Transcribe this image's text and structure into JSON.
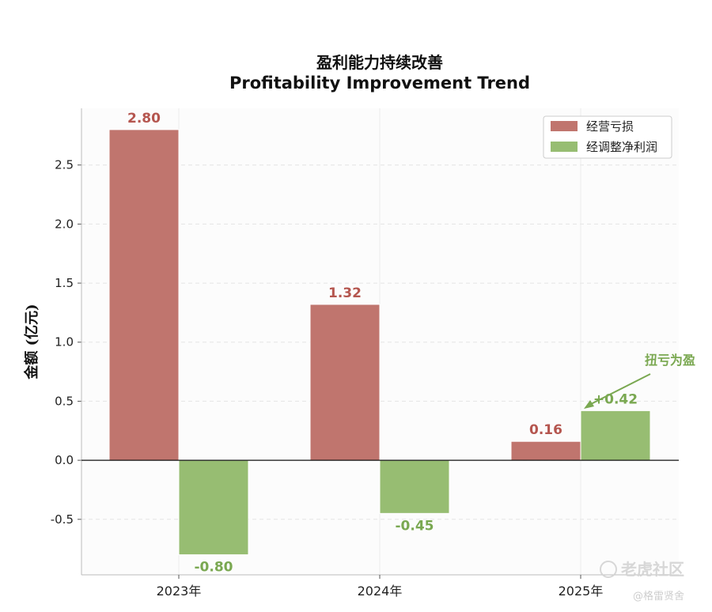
{
  "chart_data": {
    "type": "bar",
    "title": "盈利能力持续改善",
    "subtitle": "Profitability Improvement Trend",
    "xlabel": "",
    "ylabel": "金额 (亿元)",
    "categories": [
      "2023年",
      "2024年",
      "2025年"
    ],
    "series": [
      {
        "name": "经营亏损",
        "values": [
          2.8,
          1.32,
          0.16
        ],
        "labels": [
          "2.80",
          "1.32",
          "0.16"
        ],
        "color": "#c0756e"
      },
      {
        "name": "经调整净利润",
        "values": [
          -0.8,
          -0.45,
          0.42
        ],
        "labels": [
          "-0.80",
          "-0.45",
          "+0.42"
        ],
        "color": "#97bd72"
      }
    ],
    "ylim": [
      -0.97,
      2.98
    ],
    "yticks": [
      "-0.5",
      "0.0",
      "0.5",
      "1.0",
      "1.5",
      "2.0",
      "2.5"
    ],
    "grid": true,
    "legend": "top-right",
    "annotation": {
      "text": "扭亏为盈",
      "target_category": "2025年",
      "target_series": "经调整净利润",
      "color": "#7aa851"
    },
    "label_colors": {
      "loss": "#b5564f",
      "profit": "#7aa851"
    }
  },
  "watermark": {
    "main": "老虎社区",
    "sub": "@格雷贤舍"
  }
}
